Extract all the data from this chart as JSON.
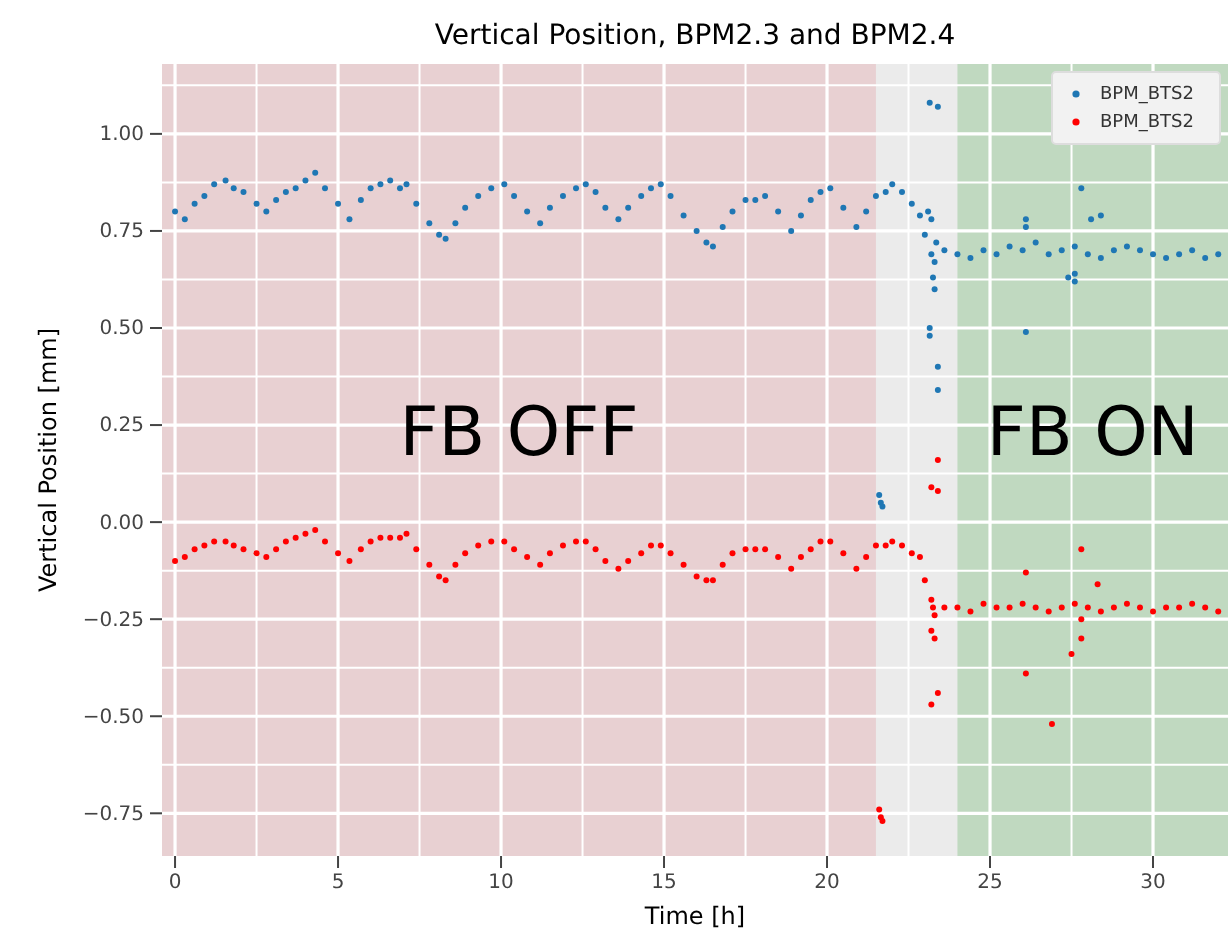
{
  "chart_data": {
    "type": "scatter",
    "title": "Vertical Position, BPM2.3 and BPM2.4",
    "xlabel": "Time [h]",
    "ylabel": "Vertical Position [mm]",
    "xlim": [
      -0.4,
      32.3
    ],
    "ylim": [
      -0.86,
      1.18
    ],
    "xticks": [
      0,
      {
        "value": 2.5,
        "label": null
      },
      5,
      {
        "value": 7.5,
        "label": null
      },
      10,
      {
        "value": 12.5,
        "label": null
      },
      15,
      {
        "value": 17.5,
        "label": null
      },
      20,
      {
        "value": 22.5,
        "label": null
      },
      25,
      {
        "value": 27.5,
        "label": null
      },
      30
    ],
    "yticks": [
      {
        "value": -0.75,
        "label": "−0.75"
      },
      {
        "value": -0.625,
        "label": null
      },
      {
        "value": -0.5,
        "label": "−0.50"
      },
      {
        "value": -0.375,
        "label": null
      },
      {
        "value": -0.25,
        "label": "−0.25"
      },
      {
        "value": -0.125,
        "label": null
      },
      {
        "value": 0,
        "label": "0.00"
      },
      {
        "value": 0.125,
        "label": null
      },
      {
        "value": 0.25,
        "label": "0.25"
      },
      {
        "value": 0.375,
        "label": null
      },
      {
        "value": 0.5,
        "label": "0.50"
      },
      {
        "value": 0.625,
        "label": null
      },
      {
        "value": 0.75,
        "label": "0.75"
      },
      {
        "value": 0.875,
        "label": null
      },
      {
        "value": 1,
        "label": "1.00"
      },
      {
        "value": 1.125,
        "label": null
      }
    ],
    "grid": true,
    "legend": "top right",
    "marker": "circle",
    "bands": [
      {
        "axis": "x",
        "from": -0.4,
        "to": 21.5,
        "label": "FB OFF",
        "color": "#e8d0d2"
      },
      {
        "axis": "x",
        "from": 24,
        "to": 32.3,
        "label": "FB ON",
        "color": "#c0d9c0"
      }
    ],
    "series": [
      {
        "name": "BPM_BTS2",
        "color": "#1f77b4",
        "x": [
          0,
          0.3,
          0.6,
          0.9,
          1.2,
          1.55,
          1.8,
          2.1,
          2.5,
          2.8,
          3.1,
          3.4,
          3.7,
          4.0,
          4.3,
          4.6,
          5.0,
          5.35,
          5.7,
          6.0,
          6.3,
          6.6,
          6.9,
          7.1,
          7.4,
          7.8,
          8.1,
          8.3,
          8.6,
          8.9,
          9.3,
          9.7,
          10.1,
          10.4,
          10.8,
          11.2,
          11.5,
          11.9,
          12.3,
          12.6,
          12.9,
          13.2,
          13.6,
          13.9,
          14.3,
          14.6,
          14.9,
          15.2,
          15.6,
          16.0,
          16.3,
          16.5,
          16.8,
          17.1,
          17.5,
          17.8,
          18.1,
          18.5,
          18.9,
          19.2,
          19.5,
          19.8,
          20.1,
          20.5,
          20.9,
          21.2,
          21.5,
          21.8,
          22.0,
          22.3,
          22.6,
          22.85,
          23.0,
          23.2,
          23.3,
          23.35,
          23.25,
          23.3,
          23.15,
          23.4,
          23.15,
          23.15,
          23.4,
          23.4,
          21.6,
          21.65,
          21.7,
          23.1,
          23.2,
          23.6,
          24.0,
          24.4,
          24.8,
          25.2,
          25.6,
          26.0,
          26.4,
          26.8,
          27.2,
          27.6,
          28.0,
          28.4,
          28.8,
          29.2,
          29.6,
          30.0,
          30.4,
          30.8,
          31.2,
          31.6,
          32.0,
          27.8,
          26.1,
          26.1,
          26.1,
          28.1,
          28.4,
          27.6,
          27.6,
          27.4
        ],
        "values": [
          0.8,
          0.78,
          0.82,
          0.84,
          0.87,
          0.88,
          0.86,
          0.85,
          0.82,
          0.8,
          0.83,
          0.85,
          0.86,
          0.88,
          0.9,
          0.86,
          0.82,
          0.78,
          0.83,
          0.86,
          0.87,
          0.88,
          0.86,
          0.87,
          0.82,
          0.77,
          0.74,
          0.73,
          0.77,
          0.81,
          0.84,
          0.86,
          0.87,
          0.84,
          0.8,
          0.77,
          0.81,
          0.84,
          0.86,
          0.87,
          0.85,
          0.81,
          0.78,
          0.81,
          0.84,
          0.86,
          0.87,
          0.84,
          0.79,
          0.75,
          0.72,
          0.71,
          0.76,
          0.8,
          0.83,
          0.83,
          0.84,
          0.8,
          0.75,
          0.79,
          0.83,
          0.85,
          0.86,
          0.81,
          0.76,
          0.8,
          0.84,
          0.85,
          0.87,
          0.85,
          0.82,
          0.79,
          0.74,
          0.69,
          0.67,
          0.72,
          0.63,
          0.6,
          1.08,
          1.07,
          0.5,
          0.48,
          0.4,
          0.34,
          0.07,
          0.05,
          0.04,
          0.8,
          0.78,
          0.7,
          0.69,
          0.68,
          0.7,
          0.69,
          0.71,
          0.7,
          0.72,
          0.69,
          0.7,
          0.71,
          0.69,
          0.68,
          0.7,
          0.71,
          0.7,
          0.69,
          0.68,
          0.69,
          0.7,
          0.68,
          0.69,
          0.86,
          0.49,
          0.78,
          0.76,
          0.78,
          0.79,
          0.64,
          0.62,
          0.63
        ]
      },
      {
        "name": "BPM_BTS2",
        "color": "#ff0000",
        "x": [
          0,
          0.3,
          0.6,
          0.9,
          1.2,
          1.55,
          1.8,
          2.1,
          2.5,
          2.8,
          3.1,
          3.4,
          3.7,
          4.0,
          4.3,
          4.6,
          5.0,
          5.35,
          5.7,
          6.0,
          6.3,
          6.6,
          6.9,
          7.1,
          7.4,
          7.8,
          8.1,
          8.3,
          8.6,
          8.9,
          9.3,
          9.7,
          10.1,
          10.4,
          10.8,
          11.2,
          11.5,
          11.9,
          12.3,
          12.6,
          12.9,
          13.2,
          13.6,
          13.9,
          14.3,
          14.6,
          14.9,
          15.2,
          15.6,
          16.0,
          16.3,
          16.5,
          16.8,
          17.1,
          17.5,
          17.8,
          18.1,
          18.5,
          18.9,
          19.2,
          19.5,
          19.8,
          20.1,
          20.5,
          20.9,
          21.2,
          21.5,
          21.8,
          22.0,
          22.3,
          22.6,
          22.85,
          23.0,
          23.2,
          23.25,
          23.3,
          23.2,
          23.3,
          21.6,
          21.65,
          21.7,
          23.4,
          23.2,
          23.4,
          23.2,
          23.4,
          23.6,
          24.0,
          24.4,
          24.8,
          25.2,
          25.6,
          26.0,
          26.4,
          26.8,
          27.2,
          27.6,
          28.0,
          28.4,
          28.8,
          29.2,
          29.6,
          30.0,
          30.4,
          30.8,
          31.2,
          31.6,
          32.0,
          26.1,
          26.9,
          27.8,
          28.3,
          26.1,
          27.5,
          27.8,
          27.8
        ],
        "values": [
          -0.1,
          -0.09,
          -0.07,
          -0.06,
          -0.05,
          -0.05,
          -0.06,
          -0.07,
          -0.08,
          -0.09,
          -0.07,
          -0.05,
          -0.04,
          -0.03,
          -0.02,
          -0.05,
          -0.08,
          -0.1,
          -0.07,
          -0.05,
          -0.04,
          -0.04,
          -0.04,
          -0.03,
          -0.07,
          -0.11,
          -0.14,
          -0.15,
          -0.11,
          -0.08,
          -0.06,
          -0.05,
          -0.05,
          -0.07,
          -0.09,
          -0.11,
          -0.08,
          -0.06,
          -0.05,
          -0.05,
          -0.07,
          -0.1,
          -0.12,
          -0.1,
          -0.08,
          -0.06,
          -0.06,
          -0.08,
          -0.11,
          -0.14,
          -0.15,
          -0.15,
          -0.11,
          -0.08,
          -0.07,
          -0.07,
          -0.07,
          -0.09,
          -0.12,
          -0.09,
          -0.07,
          -0.05,
          -0.05,
          -0.08,
          -0.12,
          -0.09,
          -0.06,
          -0.06,
          -0.05,
          -0.06,
          -0.08,
          -0.09,
          -0.15,
          -0.2,
          -0.22,
          -0.24,
          -0.28,
          -0.3,
          -0.74,
          -0.76,
          -0.77,
          0.16,
          0.09,
          0.08,
          -0.47,
          -0.44,
          -0.22,
          -0.22,
          -0.23,
          -0.21,
          -0.22,
          -0.22,
          -0.21,
          -0.22,
          -0.23,
          -0.22,
          -0.21,
          -0.22,
          -0.23,
          -0.22,
          -0.21,
          -0.22,
          -0.23,
          -0.22,
          -0.22,
          -0.21,
          -0.22,
          -0.23,
          -0.39,
          -0.52,
          -0.07,
          -0.16,
          -0.13,
          -0.34,
          -0.25,
          -0.3
        ]
      }
    ]
  }
}
